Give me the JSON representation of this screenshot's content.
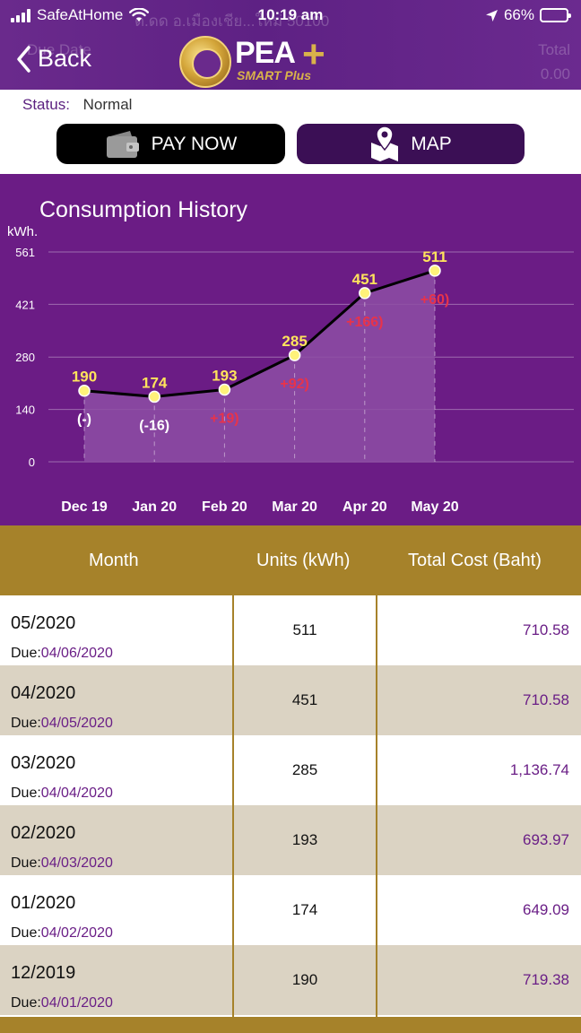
{
  "status_bar": {
    "carrier": "SafeAtHome",
    "time": "10:19 am",
    "battery": "66%",
    "battery_level": 0.66
  },
  "header": {
    "back_label": "Back",
    "logo_main": "PEA",
    "logo_sub": "SMART Plus",
    "faded_address": "ต.ดด อ.เมืองเชีย...ใหม่ 50100",
    "faded_total_label": "Total",
    "faded_total_value": "0.00",
    "faded_left": "Due Date"
  },
  "status": {
    "label": "Status:",
    "value": "Normal"
  },
  "buttons": {
    "pay_now": "PAY NOW",
    "map": "MAP"
  },
  "chart_data": {
    "type": "area",
    "title": "Consumption History",
    "ylabel": "kWh.",
    "xlabel": "",
    "yticks": [
      0,
      140,
      280,
      421,
      561
    ],
    "ylim": [
      0,
      561
    ],
    "categories": [
      "Dec 19",
      "Jan 20",
      "Feb 20",
      "Mar 20",
      "Apr 20",
      "May 20"
    ],
    "values": [
      190,
      174,
      193,
      285,
      451,
      511
    ],
    "value_labels": [
      "190",
      "174",
      "193",
      "285",
      "451",
      "511"
    ],
    "change_labels": [
      "(-)",
      "(-16)",
      "+19)",
      "+92)",
      "+166)",
      "+60)"
    ],
    "change_colors": [
      "#ffffff",
      "#ffffff",
      "#e8334a",
      "#e8334a",
      "#e8334a",
      "#e8334a"
    ],
    "grid": true,
    "colors": {
      "background": "#6b1c85",
      "area": "#8d4ea5",
      "line": "#000000",
      "point": "#fff27a",
      "value_label": "#ffe45c"
    }
  },
  "table": {
    "headers": [
      "Month",
      "Units (kWh)",
      "Total Cost (Baht)"
    ],
    "due_label": "Due:",
    "rows": [
      {
        "month": "05/2020",
        "due": "04/06/2020",
        "units": "511",
        "cost": "710.58"
      },
      {
        "month": "04/2020",
        "due": "04/05/2020",
        "units": "451",
        "cost": "710.58"
      },
      {
        "month": "03/2020",
        "due": "04/04/2020",
        "units": "285",
        "cost": "1,136.74"
      },
      {
        "month": "02/2020",
        "due": "04/03/2020",
        "units": "193",
        "cost": "693.97"
      },
      {
        "month": "01/2020",
        "due": "04/02/2020",
        "units": "174",
        "cost": "649.09"
      },
      {
        "month": "12/2019",
        "due": "04/01/2020",
        "units": "190",
        "cost": "719.38"
      }
    ]
  },
  "colors": {
    "brand_purple": "#6a2a8c",
    "gold": "#a6822a",
    "row_alt": "#dbd3c3",
    "accent_text": "#6a1e86"
  }
}
